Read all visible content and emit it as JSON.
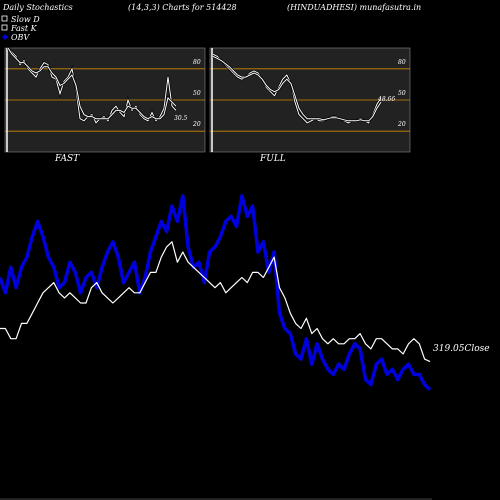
{
  "header": {
    "left": "Daily Stochastics",
    "center_left": "(14,3,3) Charts for 514428",
    "center_right": "(HINDUADHESI) munafasutra.in"
  },
  "legend": [
    {
      "label": "Slow  D",
      "color": "#ffffff",
      "symbol": "square-outline"
    },
    {
      "label": "Fast K",
      "color": "#ffffff",
      "symbol": "square-outline"
    },
    {
      "label": "OBV",
      "color": "#0000dd",
      "symbol": "diamond"
    }
  ],
  "colors": {
    "background": "#000000",
    "panel": "#222222",
    "guide": "#cc8800",
    "obv": "#0000dd",
    "price": "#ffffff"
  },
  "chart_data": [
    {
      "type": "line",
      "title": "FAST",
      "ylim": [
        0,
        100
      ],
      "yticks": [
        20,
        50,
        80
      ],
      "guides": [
        20,
        50,
        80
      ],
      "value_label": "30.5",
      "series": [
        {
          "name": "",
          "values": [
            100,
            96,
            92,
            84,
            88,
            80,
            76,
            72,
            80,
            86,
            84,
            72,
            70,
            56,
            68,
            72,
            80,
            60,
            32,
            30,
            34,
            36,
            28,
            32,
            34,
            30,
            40,
            44,
            38,
            34,
            50,
            40,
            44,
            36,
            32,
            30,
            38,
            30,
            34,
            42,
            72,
            44,
            40
          ]
        },
        {
          "name": "",
          "values": [
            100,
            94,
            90,
            86,
            86,
            82,
            78,
            76,
            78,
            82,
            82,
            76,
            72,
            64,
            66,
            70,
            74,
            64,
            44,
            36,
            34,
            34,
            32,
            32,
            32,
            32,
            36,
            40,
            40,
            38,
            44,
            42,
            42,
            38,
            34,
            32,
            34,
            32,
            32,
            36,
            52,
            48,
            44
          ]
        }
      ]
    },
    {
      "type": "line",
      "title": "FULL",
      "ylim": [
        0,
        100
      ],
      "yticks": [
        20,
        50,
        80
      ],
      "guides": [
        20,
        50,
        80
      ],
      "value_label": "48.66",
      "series": [
        {
          "name": "",
          "values": [
            94,
            92,
            88,
            84,
            80,
            76,
            72,
            70,
            72,
            76,
            78,
            76,
            70,
            62,
            58,
            54,
            62,
            70,
            74,
            66,
            48,
            36,
            32,
            28,
            30,
            32,
            30,
            30,
            32,
            34,
            34,
            32,
            30,
            28,
            30,
            30,
            32,
            30,
            28,
            36,
            46,
            52
          ]
        },
        {
          "name": "",
          "values": [
            92,
            90,
            88,
            85,
            82,
            78,
            74,
            72,
            72,
            74,
            76,
            74,
            70,
            64,
            60,
            58,
            60,
            66,
            70,
            66,
            54,
            42,
            36,
            32,
            32,
            32,
            32,
            31,
            32,
            33,
            33,
            32,
            31,
            30,
            30,
            30,
            31,
            30,
            30,
            34,
            42,
            48
          ]
        }
      ]
    },
    {
      "type": "line",
      "ylim": [
        0,
        100
      ],
      "close_label": "319.05Close",
      "series": [
        {
          "name": "OBV",
          "color": "#0000dd",
          "values": [
            50,
            44,
            54,
            46,
            54,
            58,
            66,
            72,
            66,
            58,
            54,
            46,
            48,
            56,
            52,
            44,
            50,
            52,
            46,
            54,
            60,
            64,
            58,
            48,
            52,
            56,
            44,
            50,
            60,
            66,
            72,
            68,
            78,
            72,
            82,
            62,
            54,
            56,
            48,
            60,
            62,
            66,
            72,
            74,
            70,
            82,
            74,
            78,
            60,
            64,
            52,
            60,
            36,
            30,
            28,
            20,
            18,
            26,
            16,
            24,
            18,
            14,
            12,
            16,
            14,
            20,
            24,
            22,
            10,
            8,
            16,
            18,
            12,
            14,
            10,
            14,
            16,
            12,
            12,
            8,
            6
          ]
        },
        {
          "name": "",
          "color": "#ffffff",
          "values": [
            30,
            30,
            26,
            26,
            32,
            32,
            36,
            40,
            44,
            46,
            48,
            44,
            42,
            44,
            42,
            40,
            40,
            46,
            48,
            44,
            42,
            40,
            42,
            44,
            46,
            44,
            44,
            48,
            52,
            52,
            58,
            62,
            64,
            56,
            60,
            56,
            54,
            52,
            50,
            48,
            46,
            48,
            44,
            46,
            48,
            50,
            48,
            52,
            52,
            50,
            54,
            58,
            46,
            42,
            36,
            32,
            30,
            34,
            28,
            30,
            26,
            24,
            26,
            24,
            24,
            26,
            26,
            28,
            24,
            22,
            26,
            26,
            24,
            22,
            22,
            20,
            24,
            26,
            24,
            18,
            17
          ]
        }
      ]
    }
  ]
}
